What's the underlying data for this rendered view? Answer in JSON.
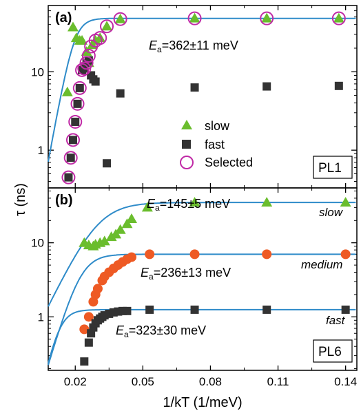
{
  "chart_data": [
    {
      "panel": "(a)",
      "type": "scatter",
      "x_scale": "linear",
      "y_scale": "log",
      "xlim": [
        0.008,
        0.145
      ],
      "ylim": [
        0.33,
        70
      ],
      "xticks": [
        0.02,
        0.05,
        0.08,
        0.11,
        0.14
      ],
      "ytick_labels": [
        "1",
        "10"
      ],
      "yticks": [
        1,
        10
      ],
      "box_label": "PL1",
      "series": [
        {
          "name": "slow",
          "marker": "triangle",
          "color": "#6abd2d",
          "x": [
            0.0165,
            0.019,
            0.0205,
            0.022,
            0.023,
            0.024,
            0.025,
            0.026,
            0.0275,
            0.029,
            0.031,
            0.034,
            0.04,
            0.073,
            0.105,
            0.137
          ],
          "y": [
            5.5,
            37,
            27,
            25,
            25,
            12,
            18,
            13,
            22,
            25,
            27,
            38,
            47,
            48,
            48,
            48
          ]
        },
        {
          "name": "fast",
          "marker": "square",
          "color": "#333333",
          "x": [
            0.017,
            0.018,
            0.019,
            0.02,
            0.021,
            0.022,
            0.023,
            0.024,
            0.025,
            0.026,
            0.027,
            0.028,
            0.029,
            0.034,
            0.04,
            0.073,
            0.105,
            0.137
          ],
          "y": [
            0.45,
            0.8,
            1.35,
            2.3,
            3.9,
            6.2,
            10.5,
            11,
            13,
            14,
            9,
            8,
            7.5,
            0.68,
            5.3,
            6.3,
            6.5,
            6.6
          ]
        },
        {
          "name": "Selected",
          "marker": "open-circle",
          "color": "#c02aa6",
          "x": [
            0.017,
            0.018,
            0.019,
            0.02,
            0.021,
            0.022,
            0.023,
            0.024,
            0.025,
            0.026,
            0.027,
            0.029,
            0.031,
            0.034,
            0.04,
            0.073,
            0.105,
            0.137
          ],
          "y": [
            0.45,
            0.8,
            1.35,
            2.3,
            3.9,
            6.2,
            10.5,
            11,
            13,
            16,
            21,
            25,
            27,
            38,
            47,
            48,
            48,
            48
          ]
        }
      ],
      "fits": [
        {
          "label_prefix": "E",
          "label_sub": "a",
          "label_value": "=362±11 meV",
          "A": 0.04,
          "Ea_meV": 362,
          "tau_sat": 48
        }
      ],
      "legend": {
        "location": "center-right",
        "entries": [
          "slow",
          "fast",
          "Selected"
        ]
      }
    },
    {
      "panel": "(b)",
      "type": "scatter",
      "x_scale": "linear",
      "y_scale": "log",
      "xlim": [
        0.008,
        0.145
      ],
      "ylim": [
        0.19,
        55
      ],
      "xticks": [
        0.02,
        0.05,
        0.08,
        0.11,
        0.14
      ],
      "xtick_labels": [
        "0.02",
        "0.05",
        "0.08",
        "0.11",
        "0.14"
      ],
      "ytick_labels": [
        "1",
        "10"
      ],
      "yticks": [
        1,
        10
      ],
      "box_label": "PL6",
      "series": [
        {
          "name": "slow",
          "marker": "triangle",
          "color": "#6abd2d",
          "x": [
            0.024,
            0.026,
            0.028,
            0.029,
            0.031,
            0.033,
            0.036,
            0.038,
            0.04,
            0.043,
            0.045,
            0.052,
            0.073,
            0.105,
            0.14
          ],
          "y": [
            10,
            9.3,
            9,
            9.5,
            10,
            10.5,
            12,
            13,
            15,
            18,
            21,
            30,
            35,
            35,
            35
          ]
        },
        {
          "name": "medium",
          "marker": "circle",
          "color": "#ee5a24",
          "x": [
            0.024,
            0.026,
            0.028,
            0.029,
            0.03,
            0.032,
            0.033,
            0.035,
            0.037,
            0.039,
            0.041,
            0.043,
            0.045,
            0.053,
            0.073,
            0.105,
            0.14
          ],
          "y": [
            0.68,
            1.0,
            1.6,
            2.0,
            2.4,
            3.1,
            3.5,
            4.0,
            4.5,
            5.0,
            5.5,
            6.0,
            6.4,
            7.0,
            7.0,
            7.0,
            7.0
          ]
        },
        {
          "name": "fast",
          "marker": "square",
          "color": "#333333",
          "x": [
            0.024,
            0.026,
            0.027,
            0.028,
            0.029,
            0.03,
            0.031,
            0.032,
            0.033,
            0.035,
            0.037,
            0.039,
            0.041,
            0.043,
            0.053,
            0.073,
            0.105,
            0.14
          ],
          "y": [
            0.25,
            0.45,
            0.6,
            0.72,
            0.82,
            0.9,
            0.95,
            1.0,
            1.05,
            1.1,
            1.15,
            1.18,
            1.2,
            1.2,
            1.25,
            1.25,
            1.25,
            1.25
          ]
        }
      ],
      "fits": [
        {
          "label_prefix": "E",
          "label_sub": "a",
          "label_value": "=145±5 meV",
          "series_label": "slow",
          "A": 0.45,
          "Ea_meV": 145,
          "tau_sat": 35
        },
        {
          "label_prefix": "E",
          "label_sub": "a",
          "label_value": "=236±13 meV",
          "series_label": "medium",
          "A": 0.035,
          "Ea_meV": 236,
          "tau_sat": 7.0
        },
        {
          "label_prefix": "E",
          "label_sub": "a",
          "label_value": "=323±30 meV",
          "series_label": "fast",
          "A": 0.022,
          "Ea_meV": 323,
          "tau_sat": 1.25
        }
      ]
    }
  ],
  "axes": {
    "xlabel": "1/kT (1/meV)",
    "ylabel": "τ (ns)",
    "colors": {
      "fit_line": "#2e8bc9",
      "axis": "#000000"
    }
  }
}
